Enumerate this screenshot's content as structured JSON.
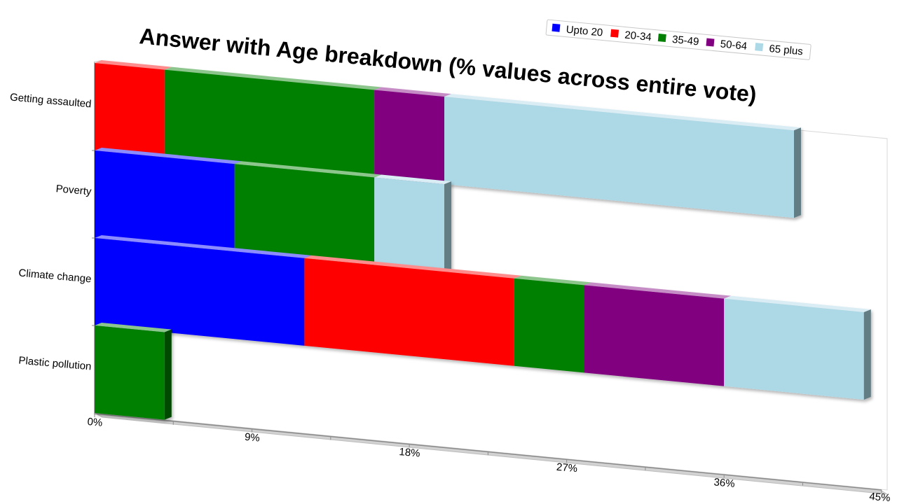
{
  "chart_data": {
    "type": "bar",
    "orientation": "horizontal",
    "stacked": true,
    "title": "Answer with Age breakdown (% values across entire vote)",
    "categories": [
      "Getting assaulted",
      "Poverty",
      "Climate change",
      "Plastic pollution"
    ],
    "series": [
      {
        "name": "Upto 20",
        "color": "#0000ff",
        "values": [
          0,
          8,
          12,
          0
        ]
      },
      {
        "name": "20-34",
        "color": "#ff0000",
        "values": [
          4,
          0,
          12,
          0
        ]
      },
      {
        "name": "35-49",
        "color": "#008000",
        "values": [
          12,
          8,
          4,
          4
        ]
      },
      {
        "name": "50-64",
        "color": "#800080",
        "values": [
          4,
          0,
          8,
          0
        ]
      },
      {
        "name": "65 plus",
        "color": "#add8e6",
        "values": [
          20,
          4,
          8,
          0
        ]
      }
    ],
    "xlim": [
      0,
      45
    ],
    "xticks": [
      "0%",
      "9%",
      "18%",
      "27%",
      "36%",
      "45%"
    ],
    "legend_position": "top-right",
    "grid": false,
    "style": "3d-perspective"
  }
}
